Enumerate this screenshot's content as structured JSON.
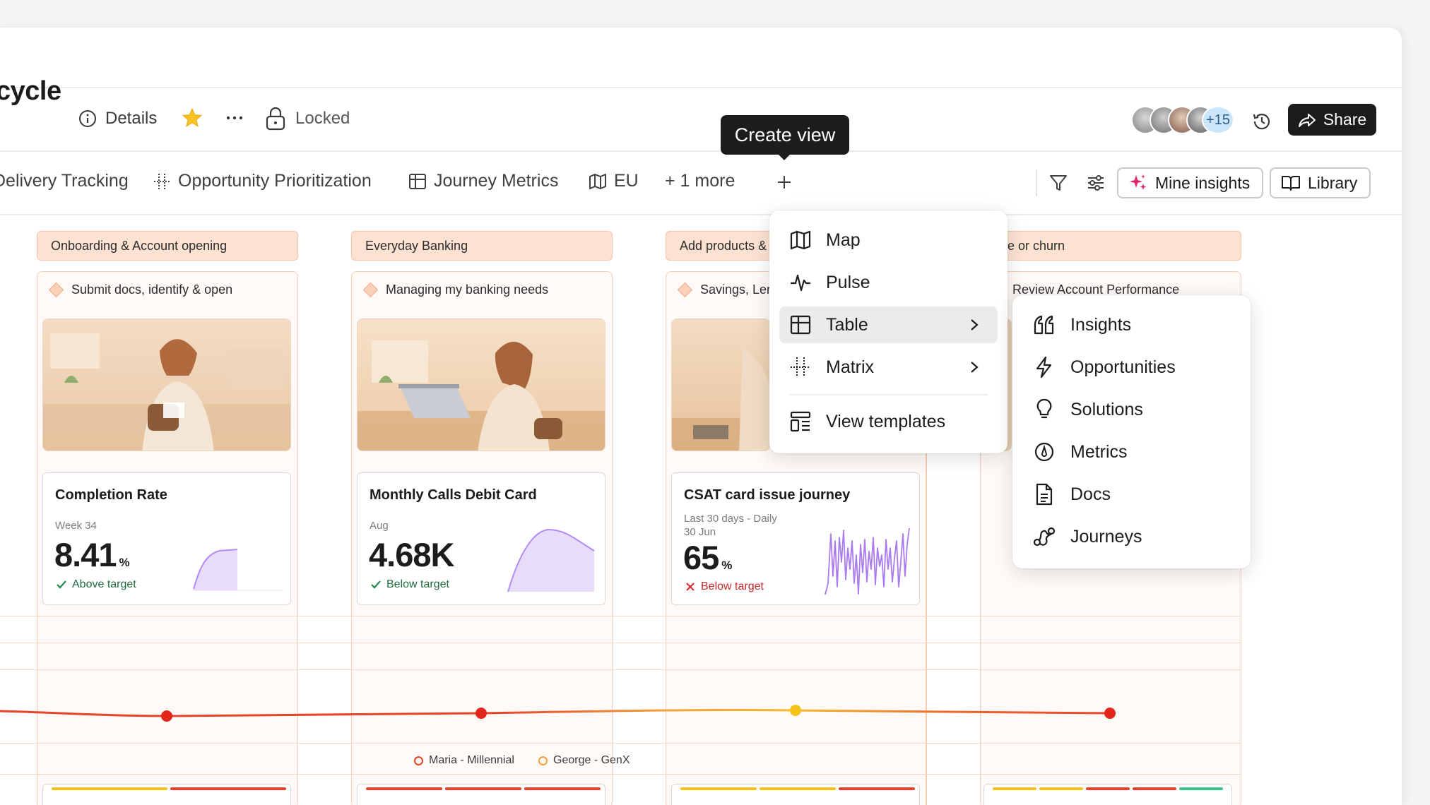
{
  "header": {
    "title_fragment": "cycle",
    "details_label": "Details",
    "locked_label": "Locked",
    "avatar_count": "+15",
    "share_label": "Share"
  },
  "tabs": [
    {
      "label": "Delivery Tracking",
      "icon": "none"
    },
    {
      "label": "Opportunity Prioritization",
      "icon": "matrix-icon"
    },
    {
      "label": "Journey Metrics",
      "icon": "table-icon"
    },
    {
      "label": "EU",
      "icon": "map-icon"
    },
    {
      "label": "+ 1 more",
      "icon": "none"
    }
  ],
  "tooltip": "Create view",
  "toolbar": {
    "mine_insights_label": "Mine insights",
    "library_label": "Library"
  },
  "view_menu": {
    "items": [
      {
        "label": "Map",
        "icon": "map-icon"
      },
      {
        "label": "Pulse",
        "icon": "pulse-icon"
      },
      {
        "label": "Table",
        "icon": "table-icon",
        "active": true,
        "submenu": true
      },
      {
        "label": "Matrix",
        "icon": "matrix-icon",
        "submenu": true
      }
    ],
    "templates_label": "View templates"
  },
  "table_submenu": {
    "items": [
      {
        "label": "Insights",
        "icon": "quote-icon"
      },
      {
        "label": "Opportunities",
        "icon": "bolt-icon"
      },
      {
        "label": "Solutions",
        "icon": "lightbulb-icon"
      },
      {
        "label": "Metrics",
        "icon": "gauge-icon"
      },
      {
        "label": "Docs",
        "icon": "document-icon"
      },
      {
        "label": "Journeys",
        "icon": "journey-icon"
      }
    ]
  },
  "stages": [
    {
      "label": "Onboarding & Account opening",
      "step": "Submit docs, identify & open"
    },
    {
      "label": "Everyday Banking",
      "step": "Managing my banking needs"
    },
    {
      "label": "Add products & ",
      "step": "Savings, Len"
    },
    {
      "label": "ave or churn",
      "step": "Review Account Performance"
    }
  ],
  "metrics": [
    {
      "title": "Completion Rate",
      "sub1": "Week 34",
      "sub2": "",
      "value": "8.41",
      "unit": "%",
      "status": "Above target",
      "status_type": "good"
    },
    {
      "title": "Monthly Calls Debit Card",
      "sub1": "Aug",
      "sub2": "",
      "value": "4.68K",
      "unit": "",
      "status": "Below target",
      "status_type": "good"
    },
    {
      "title": "CSAT card issue journey",
      "sub1": "Last 30 days - Daily",
      "sub2": "30 Jun",
      "value": "65",
      "unit": "%",
      "status": "Below target",
      "status_type": "bad"
    }
  ],
  "legend": [
    {
      "label": "Maria - Millennial",
      "color": "#e8432a"
    },
    {
      "label": "George - GenX",
      "color": "#f5a03a"
    }
  ],
  "colors": {
    "accent_pink": "#e0246b",
    "stage_bg": "#fde2d2",
    "good": "#1f8a4c",
    "bad": "#d62f2f",
    "sparkline": "#b28af2"
  }
}
